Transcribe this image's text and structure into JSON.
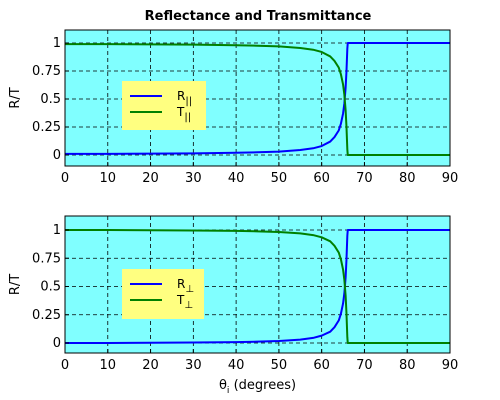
{
  "figure_title": "Reflectance and Transmittance",
  "chart_data": [
    {
      "type": "line",
      "title": "Reflectance and Transmittance",
      "xlabel": "",
      "ylabel": "R/T",
      "xlim": [
        0,
        90
      ],
      "ylim": [
        0,
        1
      ],
      "xticks": [
        "0",
        "10",
        "20",
        "30",
        "40",
        "50",
        "60",
        "70",
        "80",
        "90"
      ],
      "yticks": [
        "0",
        "0.25",
        "0.5",
        "0.75",
        "1"
      ],
      "grid": true,
      "legend_position": "left-middle",
      "series": [
        {
          "name": "R||",
          "label_main": "R",
          "label_sub": "||",
          "color": "#0000ff",
          "x": [
            0,
            10,
            20,
            30,
            40,
            45,
            50,
            55,
            58,
            60,
            62,
            63,
            64,
            64.5,
            65,
            65.3,
            65.6,
            65.8,
            66,
            66.1,
            66.2,
            70,
            80,
            90
          ],
          "y": [
            0.01,
            0.01,
            0.012,
            0.015,
            0.02,
            0.024,
            0.03,
            0.045,
            0.06,
            0.08,
            0.12,
            0.16,
            0.22,
            0.28,
            0.37,
            0.46,
            0.6,
            0.75,
            0.95,
            1.0,
            1.0,
            1.0,
            1.0,
            1.0
          ]
        },
        {
          "name": "T||",
          "label_main": "T",
          "label_sub": "||",
          "color": "#008000",
          "x": [
            0,
            10,
            20,
            30,
            40,
            45,
            50,
            55,
            58,
            60,
            62,
            63,
            64,
            64.5,
            65,
            65.3,
            65.6,
            65.8,
            66,
            66.1,
            66.2,
            70,
            80,
            90
          ],
          "y": [
            0.99,
            0.99,
            0.988,
            0.985,
            0.98,
            0.976,
            0.97,
            0.955,
            0.94,
            0.92,
            0.88,
            0.84,
            0.78,
            0.72,
            0.63,
            0.54,
            0.4,
            0.25,
            0.05,
            0.0,
            0.0,
            0.0,
            0.0,
            0.0
          ]
        }
      ]
    },
    {
      "type": "line",
      "title": "",
      "xlabel": "θi (degrees)",
      "xlabel_main": "θ",
      "xlabel_sub": "i",
      "xlabel_rest": " (degrees)",
      "ylabel": "R/T",
      "xlim": [
        0,
        90
      ],
      "ylim": [
        0,
        1
      ],
      "xticks": [
        "0",
        "10",
        "20",
        "30",
        "40",
        "50",
        "60",
        "70",
        "80",
        "90"
      ],
      "yticks": [
        "0",
        "0.25",
        "0.5",
        "0.75",
        "1"
      ],
      "grid": true,
      "legend_position": "left-middle",
      "series": [
        {
          "name": "R⊥",
          "label_main": "R",
          "label_sub": "⊥",
          "color": "#0000ff",
          "x": [
            0,
            10,
            20,
            30,
            40,
            45,
            50,
            55,
            58,
            60,
            62,
            63,
            64,
            64.5,
            65,
            65.3,
            65.6,
            65.8,
            66,
            66.1,
            66.2,
            70,
            80,
            90
          ],
          "y": [
            0.0,
            0.0,
            0.002,
            0.004,
            0.008,
            0.012,
            0.018,
            0.03,
            0.045,
            0.065,
            0.1,
            0.14,
            0.2,
            0.26,
            0.35,
            0.44,
            0.58,
            0.74,
            0.95,
            1.0,
            1.0,
            1.0,
            1.0,
            1.0
          ]
        },
        {
          "name": "T⊥",
          "label_main": "T",
          "label_sub": "⊥",
          "color": "#008000",
          "x": [
            0,
            10,
            20,
            30,
            40,
            45,
            50,
            55,
            58,
            60,
            62,
            63,
            64,
            64.5,
            65,
            65.3,
            65.6,
            65.8,
            66,
            66.1,
            66.2,
            70,
            80,
            90
          ],
          "y": [
            1.0,
            1.0,
            0.998,
            0.996,
            0.992,
            0.988,
            0.982,
            0.97,
            0.955,
            0.935,
            0.9,
            0.86,
            0.8,
            0.74,
            0.65,
            0.56,
            0.42,
            0.26,
            0.05,
            0.0,
            0.0,
            0.0,
            0.0,
            0.0
          ]
        }
      ]
    }
  ],
  "colors": {
    "plot_background": "#80ffff",
    "legend_background": "#ffff80"
  }
}
